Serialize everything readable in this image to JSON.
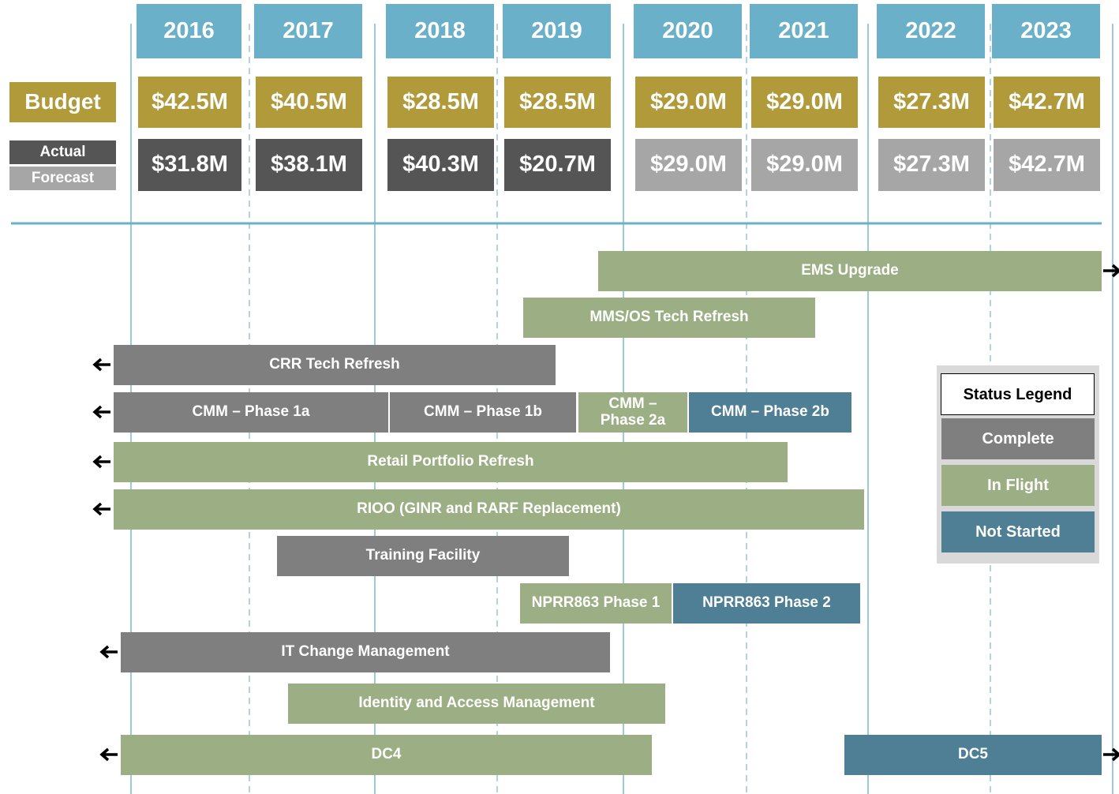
{
  "header": {
    "years": [
      "2016",
      "2017",
      "2018",
      "2019",
      "2020",
      "2021",
      "2022",
      "2023"
    ],
    "budget_label": "Budget",
    "budget": [
      "$42.5M",
      "$40.5M",
      "$28.5M",
      "$28.5M",
      "$29.0M",
      "$29.0M",
      "$27.3M",
      "$42.7M"
    ],
    "actual_label": "Actual",
    "forecast_label": "Forecast",
    "actual": [
      "$31.8M",
      "$38.1M",
      "$40.3M",
      "$20.7M",
      "$29.0M",
      "$29.0M",
      "$27.3M",
      "$42.7M"
    ]
  },
  "projects": [
    {
      "label": "EMS Upgrade",
      "color": "#9caf84",
      "arrow": "right"
    },
    {
      "label": "MMS/OS Tech Refresh",
      "color": "#9caf84"
    },
    {
      "label": "CRR Tech Refresh",
      "color": "#7f7f7f",
      "arrow": "left"
    },
    {
      "label": "CMM – Phase 1a",
      "color": "#7f7f7f",
      "arrow": "left"
    },
    {
      "label": "CMM – Phase 1b",
      "color": "#7f7f7f"
    },
    {
      "label": "CMM – Phase 2a",
      "color": "#9caf84"
    },
    {
      "label": "CMM – Phase 2b",
      "color": "#4e7f94"
    },
    {
      "label": "Retail Portfolio Refresh",
      "color": "#9caf84",
      "arrow": "left"
    },
    {
      "label": "RIOO (GINR and RARF Replacement)",
      "color": "#9caf84",
      "arrow": "left"
    },
    {
      "label": "Training Facility",
      "color": "#7f7f7f"
    },
    {
      "label": "NPRR863 Phase 1",
      "color": "#9caf84"
    },
    {
      "label": "NPRR863 Phase 2",
      "color": "#4e7f94"
    },
    {
      "label": "IT Change Management",
      "color": "#7f7f7f",
      "arrow": "left"
    },
    {
      "label": "Identity and Access Management",
      "color": "#9caf84"
    },
    {
      "label": "DC4",
      "color": "#9caf84",
      "arrow": "left"
    },
    {
      "label": "DC5",
      "color": "#4e7f94",
      "arrow": "right"
    }
  ],
  "legend": {
    "title": "Status Legend",
    "items": [
      {
        "label": "Complete",
        "color": "#7f7f7f"
      },
      {
        "label": "In Flight",
        "color": "#9caf84"
      },
      {
        "label": "Not Started",
        "color": "#4e7f94"
      }
    ]
  }
}
